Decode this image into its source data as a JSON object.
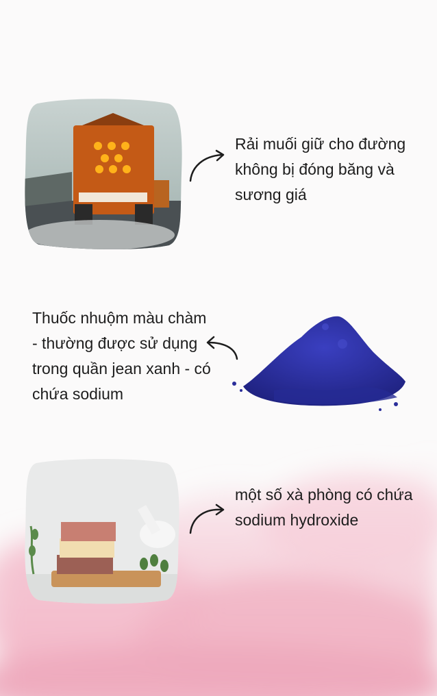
{
  "items": [
    {
      "caption": "Rải muối giữ cho đường không bị đóng băng và sương giá",
      "image": "salt-spreader-truck"
    },
    {
      "caption": "Thuốc nhuộm màu chàm - thường được sử dụng trong quần jean xanh - có chứa sodium",
      "image": "indigo-dye-powder"
    },
    {
      "caption": "một số xà phòng có chứa sodium hydroxide",
      "image": "soap-bars"
    }
  ],
  "colors": {
    "background": "#fbfafa",
    "watercolor_pink": "#f2b6c7",
    "truck_orange": "#e8731b",
    "indigo": "#2c2fa0"
  }
}
